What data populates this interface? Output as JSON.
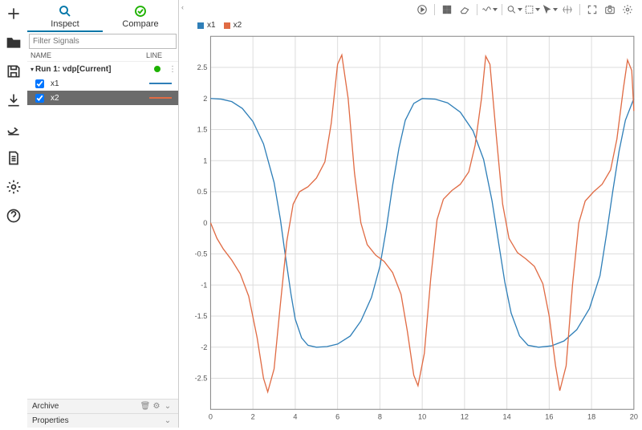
{
  "rail_icons": [
    "plus",
    "folder",
    "save",
    "import",
    "export",
    "document",
    "settings",
    "help"
  ],
  "tabs": {
    "inspect": "Inspect",
    "compare": "Compare"
  },
  "filter_placeholder": "Filter Signals",
  "col_headers": {
    "name": "NAME",
    "line": "LINE"
  },
  "run": {
    "label": "Run 1: vdp[Current]",
    "status_color": "#1db100"
  },
  "signals": [
    {
      "name": "x1",
      "checked": true,
      "selected": false,
      "color": "#2f7fb8"
    },
    {
      "name": "x2",
      "checked": true,
      "selected": true,
      "color": "#e06b44"
    }
  ],
  "sections": {
    "archive": "Archive",
    "properties": "Properties"
  },
  "legend": [
    {
      "label": "x1",
      "color": "#2f7fb8"
    },
    {
      "label": "x2",
      "color": "#e06b44"
    }
  ],
  "chart": {
    "xlim": [
      0,
      20
    ],
    "ylim": [
      -3,
      3
    ],
    "xticks": [
      0,
      2,
      4,
      6,
      8,
      10,
      12,
      14,
      16,
      18,
      20
    ],
    "yticks": [
      -2.5,
      -2.0,
      -1.5,
      -1.0,
      -0.5,
      0,
      0.5,
      1.0,
      1.5,
      2.0,
      2.5
    ],
    "grid_color": "#dddddd",
    "background": "#ffffff",
    "line_width": 1.3,
    "series": [
      {
        "name": "x1",
        "color": "#2f7fb8",
        "points": [
          [
            0,
            2.0
          ],
          [
            0.5,
            1.99
          ],
          [
            1.0,
            1.95
          ],
          [
            1.5,
            1.84
          ],
          [
            2.0,
            1.63
          ],
          [
            2.5,
            1.27
          ],
          [
            3.0,
            0.65
          ],
          [
            3.3,
            0.05
          ],
          [
            3.5,
            -0.45
          ],
          [
            3.8,
            -1.15
          ],
          [
            4.0,
            -1.55
          ],
          [
            4.3,
            -1.85
          ],
          [
            4.6,
            -1.97
          ],
          [
            5.0,
            -2.0
          ],
          [
            5.5,
            -1.99
          ],
          [
            6.0,
            -1.95
          ],
          [
            6.6,
            -1.82
          ],
          [
            7.1,
            -1.58
          ],
          [
            7.6,
            -1.2
          ],
          [
            8.0,
            -0.7
          ],
          [
            8.3,
            -0.1
          ],
          [
            8.6,
            0.6
          ],
          [
            8.9,
            1.2
          ],
          [
            9.2,
            1.65
          ],
          [
            9.6,
            1.92
          ],
          [
            10.0,
            2.0
          ],
          [
            10.6,
            1.99
          ],
          [
            11.2,
            1.93
          ],
          [
            11.8,
            1.78
          ],
          [
            12.4,
            1.48
          ],
          [
            12.9,
            1.02
          ],
          [
            13.3,
            0.35
          ],
          [
            13.6,
            -0.3
          ],
          [
            13.9,
            -0.95
          ],
          [
            14.2,
            -1.45
          ],
          [
            14.6,
            -1.82
          ],
          [
            15.0,
            -1.97
          ],
          [
            15.5,
            -2.0
          ],
          [
            16.1,
            -1.98
          ],
          [
            16.7,
            -1.9
          ],
          [
            17.3,
            -1.72
          ],
          [
            17.9,
            -1.38
          ],
          [
            18.4,
            -0.85
          ],
          [
            18.7,
            -0.2
          ],
          [
            19.0,
            0.5
          ],
          [
            19.3,
            1.15
          ],
          [
            19.6,
            1.65
          ],
          [
            20.0,
            2.0
          ]
        ]
      },
      {
        "name": "x2",
        "color": "#e06b44",
        "points": [
          [
            0,
            0.0
          ],
          [
            0.3,
            -0.25
          ],
          [
            0.6,
            -0.42
          ],
          [
            1.0,
            -0.6
          ],
          [
            1.4,
            -0.82
          ],
          [
            1.8,
            -1.18
          ],
          [
            2.2,
            -1.85
          ],
          [
            2.5,
            -2.5
          ],
          [
            2.7,
            -2.72
          ],
          [
            3.0,
            -2.35
          ],
          [
            3.3,
            -1.3
          ],
          [
            3.6,
            -0.3
          ],
          [
            3.9,
            0.3
          ],
          [
            4.2,
            0.5
          ],
          [
            4.6,
            0.58
          ],
          [
            5.0,
            0.72
          ],
          [
            5.4,
            0.98
          ],
          [
            5.7,
            1.6
          ],
          [
            6.0,
            2.55
          ],
          [
            6.2,
            2.7
          ],
          [
            6.5,
            2.0
          ],
          [
            6.8,
            0.8
          ],
          [
            7.1,
            0.0
          ],
          [
            7.4,
            -0.35
          ],
          [
            7.8,
            -0.52
          ],
          [
            8.2,
            -0.62
          ],
          [
            8.6,
            -0.8
          ],
          [
            9.0,
            -1.15
          ],
          [
            9.3,
            -1.75
          ],
          [
            9.6,
            -2.45
          ],
          [
            9.8,
            -2.62
          ],
          [
            10.1,
            -2.1
          ],
          [
            10.4,
            -0.9
          ],
          [
            10.7,
            0.05
          ],
          [
            11.0,
            0.38
          ],
          [
            11.4,
            0.52
          ],
          [
            11.8,
            0.62
          ],
          [
            12.2,
            0.82
          ],
          [
            12.5,
            1.25
          ],
          [
            12.8,
            2.0
          ],
          [
            13.0,
            2.68
          ],
          [
            13.2,
            2.55
          ],
          [
            13.5,
            1.4
          ],
          [
            13.8,
            0.3
          ],
          [
            14.1,
            -0.25
          ],
          [
            14.5,
            -0.48
          ],
          [
            14.9,
            -0.58
          ],
          [
            15.3,
            -0.7
          ],
          [
            15.7,
            -0.98
          ],
          [
            16.0,
            -1.5
          ],
          [
            16.3,
            -2.3
          ],
          [
            16.5,
            -2.7
          ],
          [
            16.8,
            -2.3
          ],
          [
            17.1,
            -1.0
          ],
          [
            17.4,
            0.0
          ],
          [
            17.7,
            0.35
          ],
          [
            18.1,
            0.5
          ],
          [
            18.5,
            0.62
          ],
          [
            18.9,
            0.85
          ],
          [
            19.2,
            1.35
          ],
          [
            19.5,
            2.15
          ],
          [
            19.7,
            2.62
          ],
          [
            19.9,
            2.45
          ],
          [
            20.0,
            1.8
          ]
        ]
      }
    ]
  }
}
